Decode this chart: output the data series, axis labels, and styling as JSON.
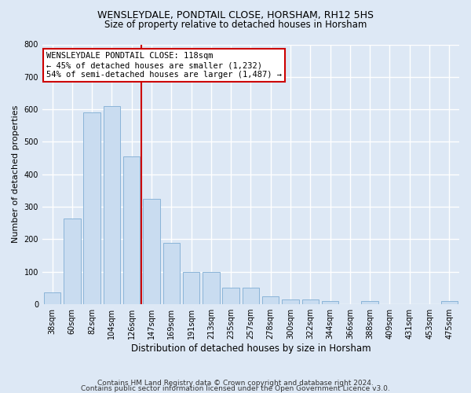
{
  "title": "WENSLEYDALE, PONDTAIL CLOSE, HORSHAM, RH12 5HS",
  "subtitle": "Size of property relative to detached houses in Horsham",
  "xlabel": "Distribution of detached houses by size in Horsham",
  "ylabel": "Number of detached properties",
  "categories": [
    "38sqm",
    "60sqm",
    "82sqm",
    "104sqm",
    "126sqm",
    "147sqm",
    "169sqm",
    "191sqm",
    "213sqm",
    "235sqm",
    "257sqm",
    "278sqm",
    "300sqm",
    "322sqm",
    "344sqm",
    "366sqm",
    "388sqm",
    "409sqm",
    "431sqm",
    "453sqm",
    "475sqm"
  ],
  "values": [
    37,
    265,
    590,
    610,
    455,
    325,
    190,
    100,
    100,
    50,
    50,
    25,
    15,
    15,
    10,
    0,
    10,
    0,
    0,
    0,
    10
  ],
  "bar_color": "#c9dcf0",
  "bar_edge_color": "#8ab4d8",
  "vline_color": "#cc0000",
  "vline_x_index": 4,
  "annotation_text": "WENSLEYDALE PONDTAIL CLOSE: 118sqm\n← 45% of detached houses are smaller (1,232)\n54% of semi-detached houses are larger (1,487) →",
  "annotation_box_facecolor": "#ffffff",
  "annotation_box_edgecolor": "#cc0000",
  "ylim": [
    0,
    800
  ],
  "yticks": [
    0,
    100,
    200,
    300,
    400,
    500,
    600,
    700,
    800
  ],
  "footer_line1": "Contains HM Land Registry data © Crown copyright and database right 2024.",
  "footer_line2": "Contains public sector information licensed under the Open Government Licence v3.0.",
  "background_color": "#dde8f5",
  "plot_background_color": "#dde8f5",
  "grid_color": "#ffffff",
  "title_fontsize": 9,
  "subtitle_fontsize": 8.5,
  "ylabel_fontsize": 8,
  "xlabel_fontsize": 8.5,
  "tick_fontsize": 7,
  "annotation_fontsize": 7.5,
  "footer_fontsize": 6.5
}
